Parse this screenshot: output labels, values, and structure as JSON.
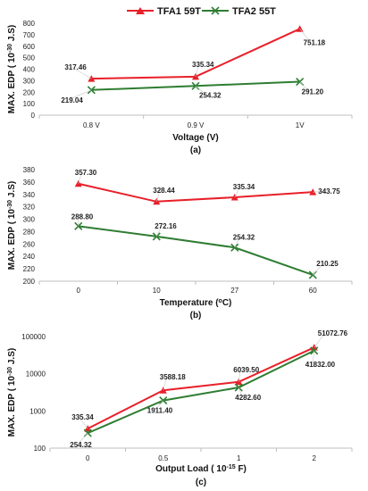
{
  "legend": [
    {
      "name": "TFA1 59T",
      "color": "#e8202a",
      "marker": "triangle"
    },
    {
      "name": "TFA2 55T",
      "color": "#2e7d32",
      "marker": "x"
    }
  ],
  "chart_data": [
    {
      "type": "line",
      "panel_label": "(a)",
      "xlabel": "Voltage (V)",
      "ylabel_text": "MAX. EDP (",
      "ylabel_unit": "10",
      "ylabel_exp": "-30",
      "ylabel_tail": " J.S)",
      "categories": [
        "0.8 V",
        "0.9 V",
        "1V"
      ],
      "ylim": [
        0,
        800
      ],
      "yticks": [
        0,
        100,
        200,
        300,
        400,
        500,
        600,
        700,
        800
      ],
      "log": false,
      "series": [
        {
          "name": "TFA1 59T",
          "values": [
            317.46,
            335.34,
            751.18
          ],
          "labels": [
            "317.46",
            "335.34",
            "751.18"
          ]
        },
        {
          "name": "TFA2 55T",
          "values": [
            219.04,
            254.32,
            291.2
          ],
          "labels": [
            "219.04",
            "254.32",
            "291.20"
          ]
        }
      ]
    },
    {
      "type": "line",
      "panel_label": "(b)",
      "xlabel": "Temperature (",
      "xlabel_sup": "o",
      "xlabel_tail": "C)",
      "ylabel_text": "MAX. EDP (",
      "ylabel_unit": "10",
      "ylabel_exp": "-30",
      "ylabel_tail": " J.S)",
      "categories": [
        "0",
        "10",
        "27",
        "60"
      ],
      "ylim": [
        200,
        380
      ],
      "yticks": [
        200,
        220,
        240,
        260,
        280,
        300,
        320,
        340,
        360,
        380
      ],
      "log": false,
      "series": [
        {
          "name": "TFA1 59T",
          "values": [
            357.3,
            328.44,
            335.34,
            343.75
          ],
          "labels": [
            "357.30",
            "328.44",
            "335.34",
            "343.75"
          ]
        },
        {
          "name": "TFA2 55T",
          "values": [
            288.8,
            272.16,
            254.32,
            210.25
          ],
          "labels": [
            "288.80",
            "272.16",
            "254.32",
            "210.25"
          ]
        }
      ]
    },
    {
      "type": "line",
      "panel_label": "(c)",
      "xlabel": "Output Load (",
      "xlabel_unit": "10",
      "xlabel_exp": "-15",
      "xlabel_tail": " F)",
      "ylabel_text": "MAX. EDP (",
      "ylabel_unit": "10",
      "ylabel_exp": "-30",
      "ylabel_tail": " J.S)",
      "categories": [
        "0",
        "0.5",
        "1",
        "2"
      ],
      "ylim": [
        100,
        100000
      ],
      "yticks": [
        100,
        1000,
        10000,
        100000
      ],
      "log": true,
      "series": [
        {
          "name": "TFA1 59T",
          "values": [
            335.34,
            3588.18,
            6039.5,
            51072.76
          ],
          "labels": [
            "335.34",
            "3588.18",
            "6039.50",
            "51072.76"
          ]
        },
        {
          "name": "TFA2 55T",
          "values": [
            254.32,
            1911.4,
            4282.6,
            41832.0
          ],
          "labels": [
            "254.32",
            "1911.40",
            "4282.60",
            "41832.00"
          ]
        }
      ]
    }
  ]
}
